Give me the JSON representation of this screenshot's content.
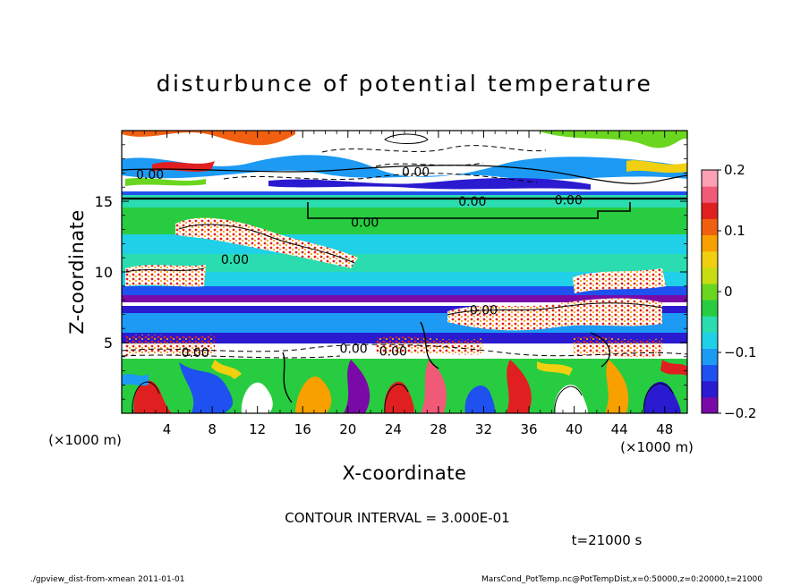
{
  "chart_data": {
    "type": "heatmap",
    "title": "disturbunce of potential temperature",
    "xlabel": "X-coordinate",
    "ylabel": "Z-coordinate",
    "x_unit": "(×1000 m)",
    "y_unit": "(×1000 m)",
    "xlim": [
      0,
      50
    ],
    "ylim": [
      0,
      20
    ],
    "x_ticks": [
      4,
      8,
      12,
      16,
      20,
      24,
      28,
      32,
      36,
      40,
      44,
      48
    ],
    "y_ticks": [
      5,
      10,
      15
    ],
    "colorbar": {
      "range": [
        -0.2,
        0.2
      ],
      "tick_values": [
        -0.2,
        -0.1,
        0,
        0.1,
        0.2
      ],
      "tick_labels": [
        "−0.2",
        "−0.1",
        "0",
        "0.1",
        "0.2"
      ],
      "colors": [
        "#7a0aa8",
        "#2a1ad0",
        "#1f50f0",
        "#1c9af4",
        "#20d0e8",
        "#2adcb0",
        "#28cc40",
        "#6ad620",
        "#c8dc14",
        "#f0d010",
        "#f7a000",
        "#f06010",
        "#e02020",
        "#f05a78",
        "#fca0b6"
      ]
    },
    "contour_labels": [
      {
        "text": "0.00",
        "x": 2.5,
        "z": 16.9
      },
      {
        "text": "0.00",
        "x": 26,
        "z": 17.1
      },
      {
        "text": "0.00",
        "x": 31,
        "z": 15.0
      },
      {
        "text": "0.00",
        "x": 39.5,
        "z": 15.1
      },
      {
        "text": "0.00",
        "x": 21.5,
        "z": 13.5
      },
      {
        "text": "0.00",
        "x": 10,
        "z": 10.9
      },
      {
        "text": "0.00",
        "x": 20.5,
        "z": 4.6
      },
      {
        "text": "0.00",
        "x": 24,
        "z": 4.4
      },
      {
        "text": "0.00",
        "x": 32,
        "z": 7.3
      },
      {
        "text": "0.00",
        "x": 6.5,
        "z": 4.3
      }
    ],
    "contour_interval_text": "CONTOUR INTERVAL = 3.000E-01",
    "time_text": "t=21000 s",
    "grid": false
  },
  "footer": {
    "left": "./gpview_dist-from-xmean  2011-01-01",
    "right": "MarsCond_PotTemp.nc@PotTempDist,x=0:50000,z=0:20000,t=21000"
  }
}
